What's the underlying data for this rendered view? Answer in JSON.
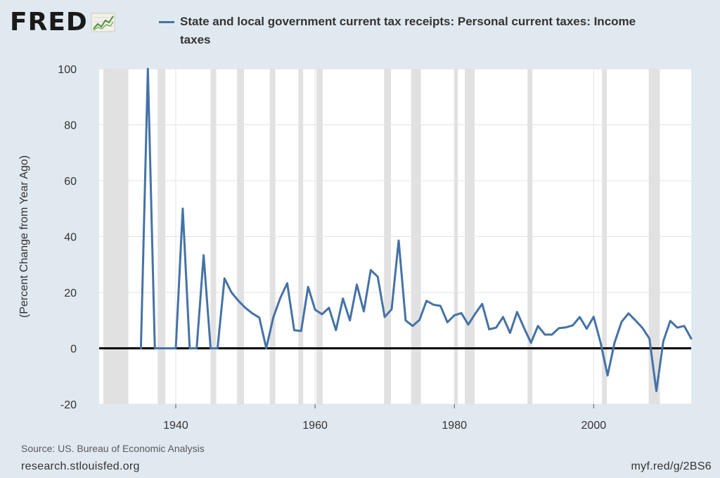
{
  "logo": {
    "text": "FRED"
  },
  "legend": {
    "label": "State and local government current tax receipts: Personal current taxes: Income taxes"
  },
  "footer": {
    "source": "Source: US. Bureau of Economic Analysis",
    "url": "research.stlouisfed.org",
    "short_link": "myf.red/g/2BS6"
  },
  "colors": {
    "background": "#e1e9f0",
    "plot_background": "#ffffff",
    "series": "#4572a7",
    "recession_shading": "#e1e1e1",
    "zero_line": "#000000",
    "gridline": "#e3e3e3"
  },
  "chart_data": {
    "type": "line",
    "title": "",
    "xlabel": "",
    "ylabel": "(Percent Change from Year Ago)",
    "xlim": [
      1929,
      2014
    ],
    "ylim": [
      -20,
      100
    ],
    "yticks": [
      -20,
      0,
      20,
      40,
      60,
      80,
      100
    ],
    "xticks": [
      1940,
      1960,
      1980,
      2000
    ],
    "grid": true,
    "legend_position": "top",
    "recessions": [
      [
        1929.6,
        1933.2
      ],
      [
        1937.4,
        1938.5
      ],
      [
        1945.0,
        1945.8
      ],
      [
        1948.8,
        1949.8
      ],
      [
        1953.5,
        1954.3
      ],
      [
        1957.6,
        1958.3
      ],
      [
        1960.2,
        1961.1
      ],
      [
        1969.9,
        1970.9
      ],
      [
        1973.8,
        1975.2
      ],
      [
        1980.0,
        1980.5
      ],
      [
        1981.5,
        1982.9
      ],
      [
        1990.5,
        1991.2
      ],
      [
        2001.2,
        2001.9
      ],
      [
        2007.9,
        2009.5
      ]
    ],
    "series": [
      {
        "name": "State and local government current tax receipts: Personal current taxes: Income taxes",
        "x": [
          1935,
          1936,
          1937,
          1938,
          1939,
          1940,
          1941,
          1942,
          1943,
          1944,
          1945,
          1946,
          1947,
          1948,
          1949,
          1950,
          1951,
          1952,
          1953,
          1954,
          1955,
          1956,
          1957,
          1958,
          1959,
          1960,
          1961,
          1962,
          1963,
          1964,
          1965,
          1966,
          1967,
          1968,
          1969,
          1970,
          1971,
          1972,
          1973,
          1974,
          1975,
          1976,
          1977,
          1978,
          1979,
          1980,
          1981,
          1982,
          1983,
          1984,
          1985,
          1986,
          1987,
          1988,
          1989,
          1990,
          1991,
          1992,
          1993,
          1994,
          1995,
          1996,
          1997,
          1998,
          1999,
          2000,
          2001,
          2002,
          2003,
          2004,
          2005,
          2006,
          2007,
          2008,
          2009,
          2010,
          2011,
          2012,
          2013,
          2014
        ],
        "y": [
          0,
          100,
          0,
          0,
          0,
          0,
          50,
          0,
          0,
          33.3,
          0,
          0,
          25,
          20,
          17,
          14.5,
          12.5,
          11,
          0,
          11,
          18,
          23.3,
          6.5,
          6.2,
          22,
          13.8,
          12.2,
          14.5,
          6.5,
          17.8,
          10,
          22.8,
          13.2,
          28,
          25.6,
          11.2,
          14,
          38.6,
          10,
          8,
          10.2,
          17,
          15.6,
          15.2,
          9.3,
          11.8,
          12.6,
          8.5,
          12.4,
          15.9,
          6.8,
          7.4,
          11.2,
          5.5,
          13,
          7.3,
          2,
          8,
          4.9,
          4.9,
          7.2,
          7.5,
          8.2,
          11.2,
          7,
          11.3,
          2,
          -9.7,
          2,
          9.4,
          12.5,
          10,
          7.3,
          3.5,
          -15.3,
          2.6,
          9.8,
          7.4,
          8,
          3.5
        ]
      }
    ]
  }
}
